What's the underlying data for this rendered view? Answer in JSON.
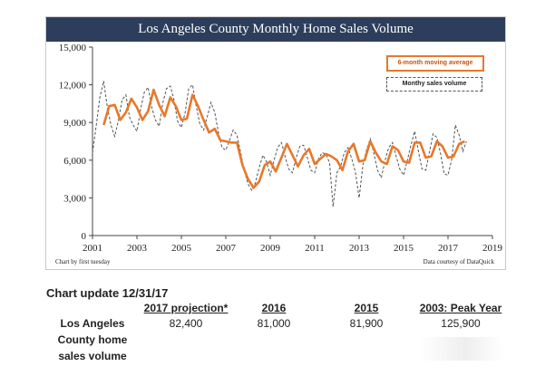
{
  "chart_data": {
    "type": "line",
    "title": "Los Angeles County Monthly Home Sales Volume",
    "xlabel": "",
    "ylabel": "",
    "xlim": [
      2001,
      2019
    ],
    "ylim": [
      0,
      15000
    ],
    "x_ticks": [
      "2001",
      "2003",
      "2005",
      "2007",
      "2009",
      "2011",
      "2013",
      "2015",
      "2017",
      "2019"
    ],
    "y_ticks": [
      "0",
      "3,000",
      "6,000",
      "9,000",
      "12,000",
      "15,000"
    ],
    "grid": false,
    "legend_position": "top-right",
    "credit_left": "Chart by first tuesday",
    "credit_right": "Data courtesy of DataQuick",
    "colors": {
      "moving_average": "#e8782a",
      "monthly": "#555555",
      "title_bar": "#2d3e5c"
    },
    "series": [
      {
        "name": "6-month moving average",
        "style": "solid",
        "x": [
          2001.5,
          2001.75,
          2002.0,
          2002.25,
          2002.5,
          2002.75,
          2003.0,
          2003.25,
          2003.5,
          2003.75,
          2004.0,
          2004.25,
          2004.5,
          2004.75,
          2005.0,
          2005.25,
          2005.5,
          2005.75,
          2006.0,
          2006.25,
          2006.5,
          2006.75,
          2007.0,
          2007.25,
          2007.5,
          2007.75,
          2008.0,
          2008.25,
          2008.5,
          2008.75,
          2009.0,
          2009.25,
          2009.5,
          2009.75,
          2010.0,
          2010.25,
          2010.5,
          2010.75,
          2011.0,
          2011.25,
          2011.5,
          2011.75,
          2012.0,
          2012.25,
          2012.5,
          2012.75,
          2013.0,
          2013.25,
          2013.5,
          2013.75,
          2014.0,
          2014.25,
          2014.5,
          2014.75,
          2015.0,
          2015.25,
          2015.5,
          2015.75,
          2016.0,
          2016.25,
          2016.5,
          2016.75,
          2017.0,
          2017.25,
          2017.5,
          2017.75
        ],
        "y": [
          8800,
          10300,
          10400,
          9200,
          9800,
          10900,
          10200,
          9200,
          9900,
          11600,
          10400,
          9500,
          11000,
          10300,
          9200,
          9300,
          11200,
          10300,
          9200,
          8200,
          8500,
          7600,
          7500,
          7400,
          7400,
          5600,
          4500,
          3800,
          4300,
          5600,
          5900,
          5100,
          6200,
          7300,
          6400,
          5500,
          6400,
          6900,
          5700,
          6100,
          6500,
          6300,
          6000,
          5200,
          6700,
          7300,
          5900,
          6000,
          7500,
          6600,
          5900,
          5700,
          7100,
          6800,
          5900,
          5800,
          7400,
          7400,
          6200,
          6300,
          7500,
          7100,
          6200,
          6300,
          7300,
          7500
        ]
      },
      {
        "name": "Monthy sales volume",
        "style": "dashed",
        "x": [
          2001.0,
          2001.17,
          2001.33,
          2001.5,
          2001.67,
          2001.83,
          2002.0,
          2002.17,
          2002.33,
          2002.5,
          2002.67,
          2002.83,
          2003.0,
          2003.17,
          2003.33,
          2003.5,
          2003.67,
          2003.83,
          2004.0,
          2004.17,
          2004.33,
          2004.5,
          2004.67,
          2004.83,
          2005.0,
          2005.17,
          2005.33,
          2005.5,
          2005.67,
          2005.83,
          2006.0,
          2006.17,
          2006.33,
          2006.5,
          2006.67,
          2006.83,
          2007.0,
          2007.17,
          2007.33,
          2007.5,
          2007.67,
          2007.83,
          2008.0,
          2008.17,
          2008.33,
          2008.5,
          2008.67,
          2008.83,
          2009.0,
          2009.17,
          2009.33,
          2009.5,
          2009.67,
          2009.83,
          2010.0,
          2010.17,
          2010.33,
          2010.5,
          2010.67,
          2010.83,
          2011.0,
          2011.17,
          2011.33,
          2011.5,
          2011.67,
          2011.83,
          2012.0,
          2012.17,
          2012.33,
          2012.5,
          2012.67,
          2012.83,
          2013.0,
          2013.17,
          2013.33,
          2013.5,
          2013.67,
          2013.83,
          2014.0,
          2014.17,
          2014.33,
          2014.5,
          2014.67,
          2014.83,
          2015.0,
          2015.17,
          2015.33,
          2015.5,
          2015.67,
          2015.83,
          2016.0,
          2016.17,
          2016.33,
          2016.5,
          2016.67,
          2016.83,
          2017.0,
          2017.17,
          2017.33,
          2017.5,
          2017.67,
          2017.83
        ],
        "y": [
          6600,
          8800,
          11000,
          12300,
          10200,
          8800,
          7900,
          9200,
          10800,
          11200,
          9400,
          8800,
          8300,
          10100,
          11400,
          11800,
          10200,
          9200,
          8700,
          10600,
          11700,
          11900,
          10800,
          9100,
          8600,
          9800,
          11700,
          12000,
          10300,
          8900,
          8400,
          9500,
          10600,
          9800,
          8200,
          7000,
          6800,
          7600,
          8400,
          8000,
          6600,
          5200,
          4100,
          3600,
          4200,
          5400,
          6400,
          5900,
          4800,
          6000,
          7000,
          7400,
          6300,
          5300,
          5000,
          6200,
          7100,
          7200,
          6200,
          5200,
          5000,
          6100,
          6600,
          6500,
          5800,
          2300,
          5000,
          5500,
          6600,
          7000,
          6100,
          5100,
          3000,
          5600,
          6800,
          7700,
          6500,
          5200,
          4600,
          6000,
          7000,
          7400,
          6300,
          5300,
          4800,
          6000,
          7200,
          8300,
          6700,
          5300,
          5200,
          6700,
          8100,
          7800,
          6500,
          4900,
          4800,
          6100,
          8800,
          8000,
          6700,
          7500
        ]
      }
    ]
  },
  "update": {
    "heading": "Chart update 12/31/17",
    "columns": [
      "2017 projection*",
      "2016",
      "2015",
      "2003: Peak Year"
    ],
    "row_label": [
      "Los Angeles",
      "County home",
      "sales volume"
    ],
    "values": [
      "82,400",
      "81,000",
      "81,900",
      "125,900"
    ]
  }
}
